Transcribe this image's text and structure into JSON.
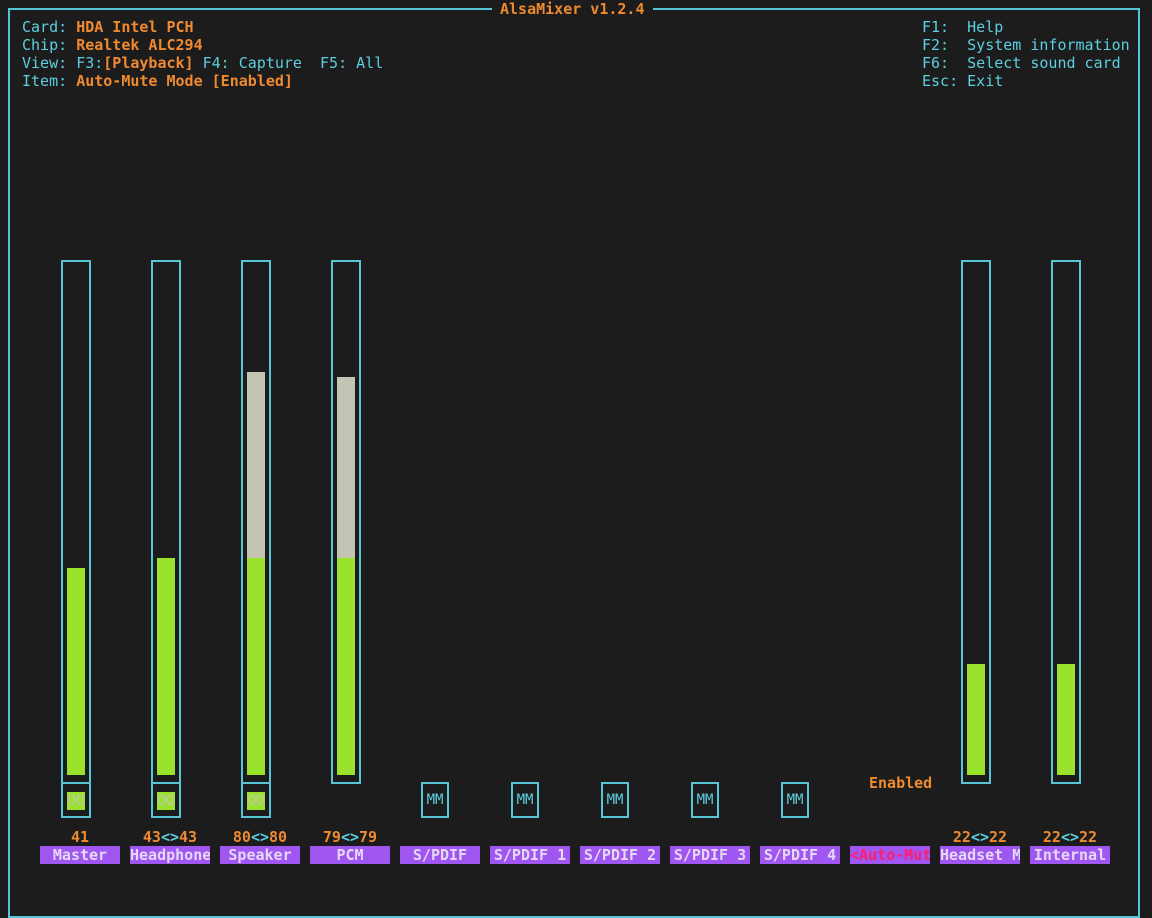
{
  "window": {
    "title": "AlsaMixer v1.2.4"
  },
  "info": {
    "card_label": "Card:",
    "card_value": "HDA Intel PCH",
    "chip_label": "Chip:",
    "chip_value": "Realtek ALC294",
    "view_label": "View:",
    "view_f3": "F3:",
    "view_playback": "[Playback]",
    "view_f4": "F4: Capture",
    "view_f5": "F5: All",
    "item_label": "Item:",
    "item_value": "Auto-Mute Mode [Enabled]"
  },
  "help": {
    "f1": "F1:  Help",
    "f2": "F2:  System information",
    "f6": "F6:  Select sound card",
    "esc": "Esc: Exit"
  },
  "colors": {
    "border": "#56c6d6",
    "accent": "#f08a30",
    "level": "#9be22d",
    "max": "#c4c4b4",
    "label_bg": "#a056f0",
    "selected": "#ff1e6e"
  },
  "controls": [
    {
      "name": "Master",
      "value_left": "41",
      "arrows": "",
      "value_right": "",
      "mute": "OO",
      "level": 0.41
    },
    {
      "name": "Headphone",
      "value_left": "43",
      "arrows": "<>",
      "value_right": "43",
      "mute": "OO",
      "level": 0.43
    },
    {
      "name": "Speaker",
      "value_left": "80",
      "arrows": "<>",
      "value_right": "80",
      "mute": "OO",
      "level": 0.8
    },
    {
      "name": "PCM",
      "value_left": "79",
      "arrows": "<>",
      "value_right": "79",
      "level": 0.79
    },
    {
      "name": "S/PDIF",
      "switch": "MM"
    },
    {
      "name": "S/PDIF 1",
      "switch": "MM"
    },
    {
      "name": "S/PDIF 2",
      "switch": "MM"
    },
    {
      "name": "S/PDIF 3",
      "switch": "MM"
    },
    {
      "name": "S/PDIF 4",
      "switch": "MM"
    },
    {
      "name": "<Auto-Mute>",
      "state": "Enabled",
      "selected": true
    },
    {
      "name": "Headset M",
      "value_left": "22",
      "arrows": "<>",
      "value_right": "22",
      "level": 0.22
    },
    {
      "name": "Internal",
      "value_left": "22",
      "arrows": "<>",
      "value_right": "22",
      "level": 0.22
    }
  ]
}
